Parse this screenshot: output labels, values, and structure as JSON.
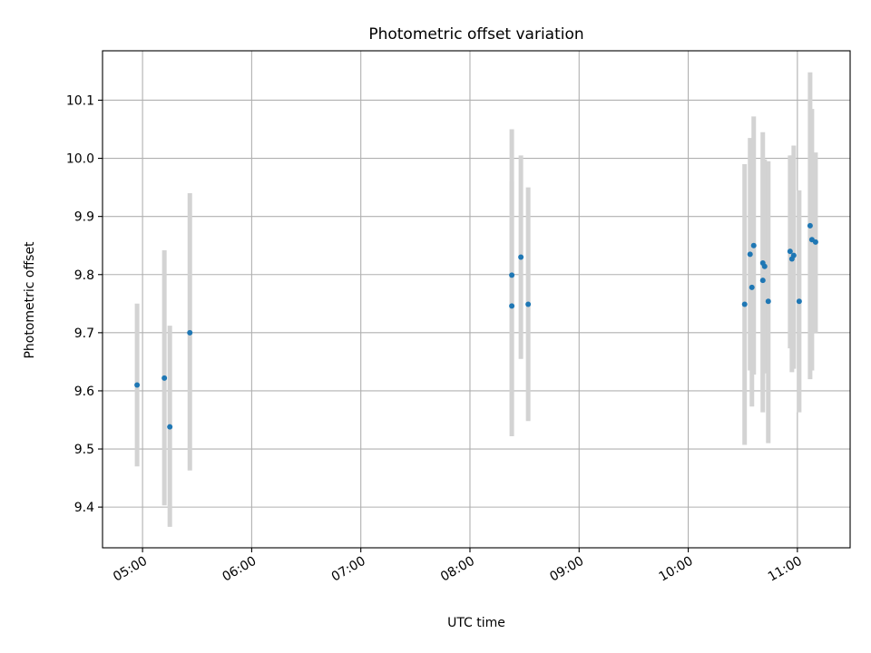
{
  "chart_data": {
    "type": "scatter",
    "title": "Photometric offset variation",
    "xlabel": "UTC time",
    "ylabel": "Photometric offset",
    "x_tick_labels": [
      "05:00",
      "06:00",
      "07:00",
      "08:00",
      "09:00",
      "10:00",
      "11:00"
    ],
    "y_tick_labels": [
      "9.4",
      "9.5",
      "9.6",
      "9.7",
      "9.8",
      "9.9",
      "10.0",
      "10.1"
    ],
    "xlim": [
      "04:38",
      "11:29"
    ],
    "ylim": [
      9.33,
      10.185
    ],
    "grid": true,
    "legend": "none",
    "colors": {
      "points": "#1f77b4",
      "error_bars": "#d3d3d3",
      "grid": "#b0b0b0"
    },
    "series": [
      {
        "points": [
          {
            "x": "04:57",
            "y": 9.61,
            "ylow": 9.47,
            "yhigh": 9.75
          },
          {
            "x": "05:12",
            "y": 9.622,
            "ylow": 9.403,
            "yhigh": 9.842
          },
          {
            "x": "05:15",
            "y": 9.538,
            "ylow": 9.366,
            "yhigh": 9.712
          },
          {
            "x": "05:26",
            "y": 9.7,
            "ylow": 9.463,
            "yhigh": 9.94
          },
          {
            "x": "08:23",
            "y": 9.746,
            "ylow": 9.522,
            "yhigh": 9.96
          },
          {
            "x": "08:23",
            "y": 9.799,
            "ylow": 9.55,
            "yhigh": 10.05
          },
          {
            "x": "08:28",
            "y": 9.83,
            "ylow": 9.655,
            "yhigh": 10.005
          },
          {
            "x": "08:32",
            "y": 9.749,
            "ylow": 9.548,
            "yhigh": 9.95
          },
          {
            "x": "10:31",
            "y": 9.749,
            "ylow": 9.507,
            "yhigh": 9.99
          },
          {
            "x": "10:34",
            "y": 9.835,
            "ylow": 9.635,
            "yhigh": 10.035
          },
          {
            "x": "10:35",
            "y": 9.778,
            "ylow": 9.573,
            "yhigh": 9.983
          },
          {
            "x": "10:36",
            "y": 9.85,
            "ylow": 9.628,
            "yhigh": 10.072
          },
          {
            "x": "10:41",
            "y": 9.82,
            "ylow": 9.6,
            "yhigh": 10.045
          },
          {
            "x": "10:41",
            "y": 9.79,
            "ylow": 9.563,
            "yhigh": 10.0
          },
          {
            "x": "10:42",
            "y": 9.814,
            "ylow": 9.63,
            "yhigh": 9.998
          },
          {
            "x": "10:44",
            "y": 9.754,
            "ylow": 9.51,
            "yhigh": 9.995
          },
          {
            "x": "10:56",
            "y": 9.84,
            "ylow": 9.673,
            "yhigh": 10.005
          },
          {
            "x": "10:57",
            "y": 9.827,
            "ylow": 9.632,
            "yhigh": 10.005
          },
          {
            "x": "10:58",
            "y": 9.833,
            "ylow": 9.638,
            "yhigh": 10.022
          },
          {
            "x": "11:01",
            "y": 9.754,
            "ylow": 9.563,
            "yhigh": 9.945
          },
          {
            "x": "11:07",
            "y": 9.884,
            "ylow": 9.62,
            "yhigh": 10.148
          },
          {
            "x": "11:08",
            "y": 9.86,
            "ylow": 9.635,
            "yhigh": 10.085
          },
          {
            "x": "11:10",
            "y": 9.856,
            "ylow": 9.7,
            "yhigh": 10.01
          }
        ]
      }
    ]
  }
}
